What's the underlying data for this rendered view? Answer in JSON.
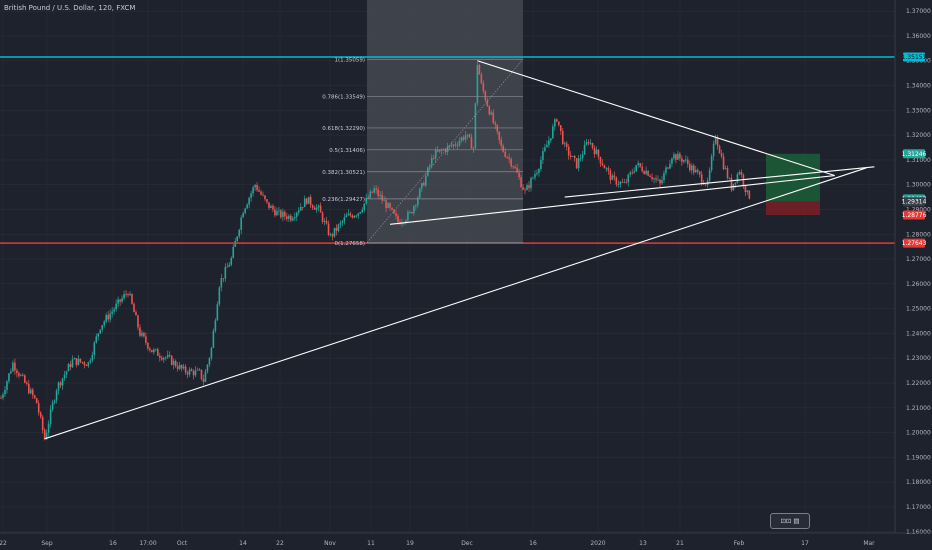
{
  "header": {
    "symbol_title": "British Pound / U.S. Dollar, 120, FXCM"
  },
  "watermark": {
    "text": ""
  },
  "colors": {
    "background": "#1e222d",
    "grid": "#2a2e39",
    "up": "#26a69a",
    "down": "#ef5350",
    "resistance": "#00bcd4",
    "support": "#e53935",
    "trendline": "#ffffff",
    "fib_zone": "#4a4d56",
    "target_zone": "#1b5e37",
    "stop_zone": "#7a1f27"
  },
  "chart_data": {
    "type": "candlestick",
    "symbol": "British Pound / U.S. Dollar",
    "timeframe": "120",
    "source": "FXCM",
    "y_axis": {
      "ticks": [
        "1.37000",
        "1.36000",
        "1.35000",
        "1.34000",
        "1.33000",
        "1.32000",
        "1.31000",
        "1.30000",
        "1.29000",
        "1.28000",
        "1.27000",
        "1.26000",
        "1.25000",
        "1.24000",
        "1.23000",
        "1.22000",
        "1.21000",
        "1.20000",
        "1.19000",
        "1.18000",
        "1.17000",
        "1.16000"
      ],
      "range": [
        1.1595,
        1.3745
      ]
    },
    "x_axis": {
      "ticks": [
        "22",
        "Sep",
        "16",
        "17:00",
        "Oct",
        "14",
        "22",
        "Nov",
        "11",
        "19",
        "Dec",
        "16",
        "2020",
        "13",
        "21",
        "Feb",
        "17",
        "Mar"
      ]
    },
    "price_path": [
      {
        "d": 0,
        "p": 1.214
      },
      {
        "d": 3,
        "p": 1.228
      },
      {
        "d": 6,
        "p": 1.22
      },
      {
        "d": 9,
        "p": 1.212
      },
      {
        "d": 11,
        "p": 1.1975
      },
      {
        "d": 14,
        "p": 1.218
      },
      {
        "d": 18,
        "p": 1.229
      },
      {
        "d": 22,
        "p": 1.228
      },
      {
        "d": 25,
        "p": 1.243
      },
      {
        "d": 29,
        "p": 1.251
      },
      {
        "d": 32,
        "p": 1.257
      },
      {
        "d": 35,
        "p": 1.24
      },
      {
        "d": 38,
        "p": 1.233
      },
      {
        "d": 42,
        "p": 1.23
      },
      {
        "d": 46,
        "p": 1.225
      },
      {
        "d": 50,
        "p": 1.224
      },
      {
        "d": 51,
        "p": 1.221
      },
      {
        "d": 53,
        "p": 1.234
      },
      {
        "d": 55,
        "p": 1.26
      },
      {
        "d": 58,
        "p": 1.27
      },
      {
        "d": 61,
        "p": 1.29
      },
      {
        "d": 64,
        "p": 1.3
      },
      {
        "d": 67,
        "p": 1.292
      },
      {
        "d": 70,
        "p": 1.288
      },
      {
        "d": 73,
        "p": 1.287
      },
      {
        "d": 77,
        "p": 1.294
      },
      {
        "d": 80,
        "p": 1.29
      },
      {
        "d": 83,
        "p": 1.279
      },
      {
        "d": 87,
        "p": 1.287
      },
      {
        "d": 90,
        "p": 1.289
      },
      {
        "d": 94,
        "p": 1.298
      },
      {
        "d": 97,
        "p": 1.292
      },
      {
        "d": 100,
        "p": 1.285
      },
      {
        "d": 103,
        "p": 1.288
      },
      {
        "d": 106,
        "p": 1.299
      },
      {
        "d": 109,
        "p": 1.312
      },
      {
        "d": 114,
        "p": 1.316
      },
      {
        "d": 117,
        "p": 1.32
      },
      {
        "d": 119,
        "p": 1.315
      },
      {
        "d": 120,
        "p": 1.349
      },
      {
        "d": 121,
        "p": 1.34
      },
      {
        "d": 123,
        "p": 1.33
      },
      {
        "d": 126,
        "p": 1.315
      },
      {
        "d": 129,
        "p": 1.308
      },
      {
        "d": 132,
        "p": 1.297
      },
      {
        "d": 135,
        "p": 1.306
      },
      {
        "d": 138,
        "p": 1.318
      },
      {
        "d": 140,
        "p": 1.327
      },
      {
        "d": 142,
        "p": 1.315
      },
      {
        "d": 145,
        "p": 1.308
      },
      {
        "d": 148,
        "p": 1.318
      },
      {
        "d": 151,
        "p": 1.31
      },
      {
        "d": 154,
        "p": 1.302
      },
      {
        "d": 157,
        "p": 1.3
      },
      {
        "d": 160,
        "p": 1.308
      },
      {
        "d": 163,
        "p": 1.305
      },
      {
        "d": 166,
        "p": 1.3
      },
      {
        "d": 169,
        "p": 1.312
      },
      {
        "d": 172,
        "p": 1.31
      },
      {
        "d": 175,
        "p": 1.305
      },
      {
        "d": 178,
        "p": 1.3
      },
      {
        "d": 180,
        "p": 1.32
      },
      {
        "d": 182,
        "p": 1.308
      },
      {
        "d": 184,
        "p": 1.299
      },
      {
        "d": 186,
        "p": 1.306
      },
      {
        "d": 188,
        "p": 1.296
      },
      {
        "d": 189,
        "p": 1.295
      }
    ],
    "horizontal_lines": [
      {
        "name": "resistance",
        "value": 1.35151,
        "label": "1.35151"
      },
      {
        "name": "support",
        "value": 1.27643,
        "label": "1.27643"
      }
    ],
    "fibonacci": {
      "levels": [
        {
          "ratio": "1",
          "value": 1.35059,
          "label": "1(1.35059)"
        },
        {
          "ratio": "0.786",
          "value": 1.33549,
          "label": "0.786(1.33549)"
        },
        {
          "ratio": "0.618",
          "value": 1.3229,
          "label": "0.618(1.32290)"
        },
        {
          "ratio": "0.5",
          "value": 1.31406,
          "label": "0.5(1.31406)"
        },
        {
          "ratio": "0.382",
          "value": 1.30521,
          "label": "0.382(1.30521)"
        },
        {
          "ratio": "0.236",
          "value": 1.29427,
          "label": "0.236(1.29427)"
        },
        {
          "ratio": "0",
          "value": 1.27658,
          "label": "0(1.27658)"
        }
      ]
    },
    "trendlines": [
      {
        "from": {
          "d": 11,
          "p": 1.1975
        },
        "to": {
          "d": 218,
          "p": 1.3068
        }
      },
      {
        "from": {
          "d": 120,
          "p": 1.35
        },
        "to": {
          "d": 210,
          "p": 1.3037
        }
      },
      {
        "from": {
          "d": 98,
          "p": 1.284
        },
        "to": {
          "d": 210,
          "p": 1.3037
        }
      },
      {
        "from": {
          "d": 142,
          "p": 1.295
        },
        "to": {
          "d": 220,
          "p": 1.3072
        }
      }
    ],
    "position": {
      "entry": 1.29314,
      "target": 1.31246,
      "stop": 1.28776,
      "entry_label": "1.29314",
      "target_label": "1.31246",
      "stop_label": "1.28776"
    },
    "price_tags": [
      {
        "value": 1.35151,
        "label": "1.35151",
        "color": "#00bcd4",
        "text_color": "#131722"
      },
      {
        "value": 1.31246,
        "label": "1.31246",
        "color": "#26a69a",
        "text_color": "#ffffff"
      },
      {
        "value": 1.29427,
        "label": "1.29427",
        "color": "#26a69a",
        "text_color": "#ffffff"
      },
      {
        "value": 1.29314,
        "label": "1.29314",
        "color": "#3a3e4a",
        "text_color": "#ffffff"
      },
      {
        "value": 1.28776,
        "label": "1.28776",
        "color": "#e53935",
        "text_color": "#ffffff"
      },
      {
        "value": 1.27643,
        "label": "1.27643",
        "color": "#e53935",
        "text_color": "#ffffff"
      }
    ]
  }
}
